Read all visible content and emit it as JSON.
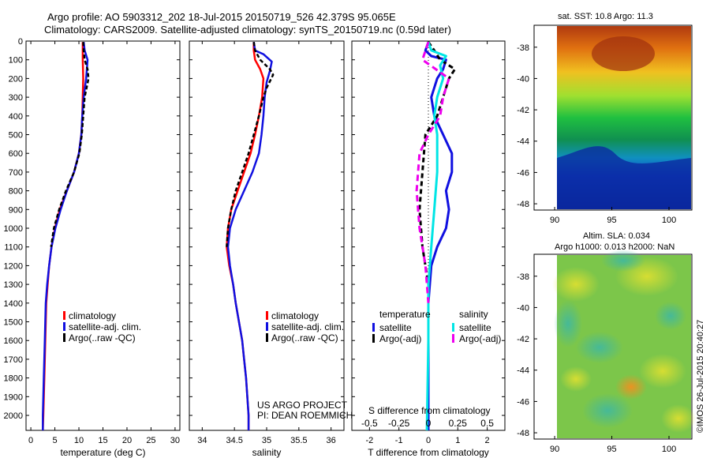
{
  "header": {
    "line1": "Argo profile: AO 5903312_202 18-Jul-2015 20150719_526 42.379S 95.065E",
    "line2": "Climatology: CARS2009. Satellite-adjusted climatology: synTS_20150719.nc (0.59d later)"
  },
  "colors": {
    "climatology": "#ff0000",
    "satellite": "#1010e0",
    "argo": "#000000",
    "cyan": "#00e5e5",
    "magenta": "#ee00ee"
  },
  "chart_data": [
    {
      "type": "line",
      "id": "temperature",
      "xlabel": "temperature (deg C)",
      "xlim": [
        -1,
        31
      ],
      "ylim": [
        2080,
        0
      ],
      "xticks": [
        0,
        5,
        10,
        15,
        20,
        25,
        30
      ],
      "yticks": [
        0,
        100,
        200,
        300,
        400,
        500,
        600,
        700,
        800,
        900,
        1000,
        1100,
        1200,
        1300,
        1400,
        1500,
        1600,
        1700,
        1800,
        1900,
        2000
      ],
      "legend": [
        "climatology",
        "satellite-adj. clim.",
        "Argo(..raw -QC)"
      ],
      "series": [
        {
          "name": "climatology",
          "color": "#ff0000",
          "dash": "",
          "points": [
            [
              10.8,
              5
            ],
            [
              10.8,
              50
            ],
            [
              10.8,
              100
            ],
            [
              10.9,
              200
            ],
            [
              10.8,
              300
            ],
            [
              10.7,
              400
            ],
            [
              10.5,
              500
            ],
            [
              10.0,
              600
            ],
            [
              9.0,
              700
            ],
            [
              7.5,
              800
            ],
            [
              6.0,
              900
            ],
            [
              5.0,
              1000
            ],
            [
              4.3,
              1100
            ],
            [
              3.8,
              1200
            ],
            [
              3.5,
              1300
            ],
            [
              3.2,
              1400
            ],
            [
              3.0,
              1600
            ],
            [
              2.8,
              1800
            ],
            [
              2.6,
              2000
            ],
            [
              2.5,
              2080
            ]
          ]
        },
        {
          "name": "satellite-adj. clim.",
          "color": "#1010e0",
          "dash": "",
          "points": [
            [
              11.0,
              5
            ],
            [
              11.2,
              50
            ],
            [
              11.8,
              100
            ],
            [
              11.5,
              200
            ],
            [
              11.0,
              300
            ],
            [
              10.7,
              400
            ],
            [
              10.5,
              500
            ],
            [
              10.0,
              600
            ],
            [
              9.0,
              700
            ],
            [
              7.5,
              800
            ],
            [
              6.2,
              900
            ],
            [
              5.1,
              1000
            ],
            [
              4.3,
              1100
            ],
            [
              3.8,
              1200
            ],
            [
              3.4,
              1300
            ],
            [
              3.1,
              1400
            ],
            [
              2.9,
              1600
            ],
            [
              2.7,
              1800
            ],
            [
              2.5,
              2000
            ],
            [
              2.5,
              2080
            ]
          ]
        },
        {
          "name": "Argo(..raw -QC)",
          "color": "#000000",
          "dash": "5,3",
          "points": [
            [
              10.9,
              5
            ],
            [
              11.0,
              50
            ],
            [
              11.2,
              100
            ],
            [
              11.8,
              150
            ],
            [
              12.0,
              200
            ],
            [
              11.6,
              250
            ],
            [
              11.2,
              300
            ],
            [
              10.9,
              400
            ],
            [
              10.6,
              500
            ],
            [
              10.1,
              600
            ],
            [
              9.0,
              700
            ],
            [
              7.3,
              800
            ],
            [
              5.9,
              900
            ],
            [
              4.8,
              1000
            ],
            [
              4.2,
              1100
            ]
          ]
        }
      ]
    },
    {
      "type": "line",
      "id": "salinity",
      "xlabel": "salinity",
      "xlim": [
        33.8,
        36.2
      ],
      "ylim": [
        2080,
        0
      ],
      "xticks": [
        34,
        34.5,
        35,
        35.5,
        36
      ],
      "legend": [
        "climatology",
        "satellite-adj. clim.",
        "Argo(..raw -QC)"
      ],
      "annotation": [
        "US ARGO PROJECT",
        "PI: DEAN ROEMMICH"
      ],
      "series": [
        {
          "name": "climatology",
          "color": "#ff0000",
          "dash": "",
          "points": [
            [
              34.8,
              5
            ],
            [
              34.8,
              50
            ],
            [
              34.82,
              100
            ],
            [
              34.9,
              150
            ],
            [
              34.95,
              200
            ],
            [
              34.93,
              300
            ],
            [
              34.88,
              400
            ],
            [
              34.82,
              500
            ],
            [
              34.75,
              600
            ],
            [
              34.65,
              700
            ],
            [
              34.55,
              800
            ],
            [
              34.45,
              900
            ],
            [
              34.4,
              1000
            ],
            [
              34.38,
              1100
            ],
            [
              34.42,
              1200
            ],
            [
              34.48,
              1300
            ],
            [
              34.52,
              1400
            ],
            [
              34.57,
              1500
            ],
            [
              34.62,
              1600
            ],
            [
              34.65,
              1700
            ],
            [
              34.68,
              1800
            ],
            [
              34.7,
              1900
            ],
            [
              34.72,
              2000
            ],
            [
              34.72,
              2080
            ]
          ]
        },
        {
          "name": "satellite-adj. clim.",
          "color": "#1010e0",
          "dash": "",
          "points": [
            [
              34.8,
              5
            ],
            [
              34.82,
              50
            ],
            [
              34.95,
              70
            ],
            [
              35.08,
              110
            ],
            [
              35.05,
              160
            ],
            [
              35.0,
              220
            ],
            [
              34.97,
              300
            ],
            [
              34.95,
              400
            ],
            [
              34.92,
              500
            ],
            [
              34.88,
              600
            ],
            [
              34.78,
              700
            ],
            [
              34.65,
              800
            ],
            [
              34.52,
              900
            ],
            [
              34.43,
              1000
            ],
            [
              34.4,
              1100
            ],
            [
              34.43,
              1200
            ],
            [
              34.48,
              1300
            ],
            [
              34.52,
              1400
            ],
            [
              34.57,
              1500
            ],
            [
              34.62,
              1600
            ],
            [
              34.65,
              1700
            ],
            [
              34.68,
              1800
            ],
            [
              34.7,
              1900
            ],
            [
              34.72,
              2000
            ],
            [
              34.72,
              2080
            ]
          ]
        },
        {
          "name": "Argo(..raw -QC)",
          "color": "#000000",
          "dash": "5,3",
          "points": [
            [
              34.8,
              5
            ],
            [
              34.82,
              50
            ],
            [
              34.9,
              100
            ],
            [
              35.05,
              150
            ],
            [
              35.1,
              180
            ],
            [
              35.0,
              250
            ],
            [
              34.95,
              300
            ],
            [
              34.88,
              400
            ],
            [
              34.8,
              500
            ],
            [
              34.72,
              600
            ],
            [
              34.62,
              700
            ],
            [
              34.52,
              800
            ],
            [
              34.45,
              900
            ],
            [
              34.4,
              1000
            ],
            [
              34.38,
              1100
            ]
          ]
        }
      ]
    },
    {
      "type": "line",
      "id": "difference",
      "xlabel": "T difference from climatology",
      "xlabel2": "S difference from climatology",
      "xlim": [
        -2.6,
        2.6
      ],
      "ylim": [
        2080,
        0
      ],
      "xticks": [
        -2,
        -1,
        0,
        1,
        2
      ],
      "xticks_top": [
        -0.5,
        -0.25,
        0,
        0.25,
        0.5
      ],
      "legend_titles": [
        "temperature",
        "salinity"
      ],
      "legend": [
        "satellite",
        "Argo(-adj)",
        "satellite",
        "Argo(-adj)"
      ],
      "series": [
        {
          "name": "temperature satellite",
          "color": "#1010e0",
          "dash": "",
          "points": [
            [
              0.0,
              5
            ],
            [
              -0.1,
              50
            ],
            [
              0.1,
              80
            ],
            [
              0.6,
              100
            ],
            [
              0.5,
              150
            ],
            [
              0.3,
              200
            ],
            [
              0.1,
              300
            ],
            [
              0.2,
              400
            ],
            [
              0.5,
              500
            ],
            [
              0.8,
              600
            ],
            [
              0.8,
              700
            ],
            [
              0.6,
              800
            ],
            [
              0.7,
              900
            ],
            [
              0.6,
              1000
            ],
            [
              0.3,
              1100
            ],
            [
              0.1,
              1200
            ],
            [
              0.0,
              1400
            ],
            [
              0.0,
              2080
            ]
          ]
        },
        {
          "name": "temperature Argo(-adj)",
          "color": "#000000",
          "dash": "6,4",
          "points": [
            [
              0.0,
              5
            ],
            [
              0.2,
              50
            ],
            [
              0.4,
              100
            ],
            [
              0.9,
              150
            ],
            [
              0.7,
              200
            ],
            [
              0.5,
              300
            ],
            [
              0.3,
              400
            ],
            [
              -0.1,
              500
            ],
            [
              -0.2,
              700
            ],
            [
              -0.3,
              900
            ],
            [
              -0.2,
              1100
            ],
            [
              0.0,
              1300
            ]
          ]
        },
        {
          "name": "salinity satellite",
          "color": "#00e5e5",
          "dash": "",
          "points": [
            [
              0.0,
              5
            ],
            [
              0.1,
              50
            ],
            [
              0.6,
              80
            ],
            [
              0.4,
              130
            ],
            [
              0.5,
              200
            ],
            [
              0.3,
              300
            ],
            [
              0.2,
              400
            ],
            [
              0.3,
              500
            ],
            [
              0.3,
              700
            ],
            [
              0.2,
              900
            ],
            [
              0.1,
              1100
            ],
            [
              0.0,
              1300
            ],
            [
              0.0,
              1600
            ],
            [
              -0.05,
              2080
            ]
          ]
        },
        {
          "name": "salinity Argo(-adj)",
          "color": "#ee00ee",
          "dash": "8,5",
          "points": [
            [
              0.0,
              5
            ],
            [
              -0.2,
              100
            ],
            [
              0.7,
              200
            ],
            [
              0.5,
              300
            ],
            [
              0.4,
              400
            ],
            [
              0.0,
              500
            ],
            [
              -0.3,
              600
            ],
            [
              -0.4,
              800
            ],
            [
              -0.3,
              1000
            ],
            [
              -0.1,
              1200
            ],
            [
              0.0,
              1400
            ]
          ]
        }
      ]
    },
    {
      "type": "heatmap",
      "id": "sst_map",
      "title": "sat. SST: 10.8 Argo: 11.3",
      "xticks": [
        90,
        95,
        100
      ],
      "yticks": [
        -38,
        -40,
        -42,
        -44,
        -46,
        -48
      ],
      "xlim": [
        88.2,
        102
      ],
      "ylim": [
        -48.4,
        -36.6
      ]
    },
    {
      "type": "heatmap",
      "id": "sla_map",
      "title": "Altim. SLA: 0.034",
      "subtitle": "Argo h1000: 0.013 h2000: NaN",
      "xticks": [
        90,
        95,
        100
      ],
      "yticks": [
        -38,
        -40,
        -42,
        -44,
        -46,
        -48
      ],
      "xlim": [
        88.2,
        102
      ],
      "ylim": [
        -48.4,
        -36.6
      ]
    }
  ],
  "footer": {
    "credit": "©IMOS 26-Jul-2015 20:40:27"
  }
}
